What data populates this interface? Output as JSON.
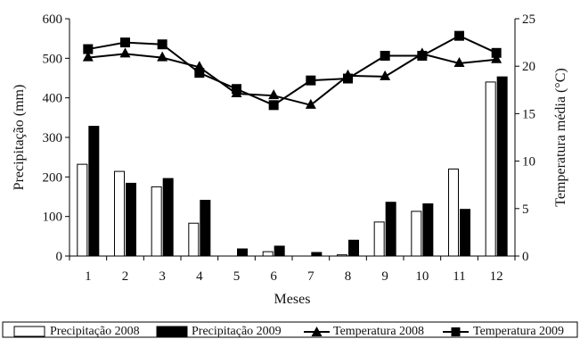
{
  "chart_data": {
    "type": "bar",
    "xlabel": "Meses",
    "ylabel_left": "Precipitação (mm)",
    "ylabel_right": "Temperatura média (°C)",
    "categories": [
      "1",
      "2",
      "3",
      "4",
      "5",
      "6",
      "7",
      "8",
      "9",
      "10",
      "11",
      "12"
    ],
    "ylim_left": [
      0,
      600
    ],
    "yticks_left": [
      "0",
      "100",
      "200",
      "300",
      "400",
      "500",
      "600"
    ],
    "ylim_right": [
      0,
      25
    ],
    "yticks_right": [
      "0",
      "5",
      "10",
      "15",
      "20",
      "25"
    ],
    "grid": false,
    "legend_position": "bottom",
    "series": [
      {
        "name": "Precipitação 2008",
        "kind": "bar",
        "axis": "left",
        "color": "#ffffff",
        "values": [
          232,
          214,
          175,
          83,
          0,
          11,
          0,
          3,
          86,
          113,
          220,
          440
        ]
      },
      {
        "name": "Precipitação 2009",
        "kind": "bar",
        "axis": "left",
        "color": "#000000",
        "values": [
          328,
          184,
          196,
          141,
          18,
          25,
          9,
          40,
          136,
          132,
          118,
          453
        ]
      },
      {
        "name": "Temperatura 2008",
        "kind": "line",
        "axis": "right",
        "marker": "triangle",
        "color": "#000000",
        "values": [
          20.9,
          21.3,
          20.9,
          19.9,
          17.1,
          16.9,
          15.9,
          19.0,
          18.9,
          21.3,
          20.3,
          20.7
        ]
      },
      {
        "name": "Temperatura 2009",
        "kind": "line",
        "axis": "right",
        "marker": "square",
        "color": "#000000",
        "values": [
          21.8,
          22.5,
          22.3,
          19.3,
          17.6,
          15.9,
          18.5,
          18.7,
          21.1,
          21.1,
          23.2,
          21.4
        ]
      }
    ]
  }
}
